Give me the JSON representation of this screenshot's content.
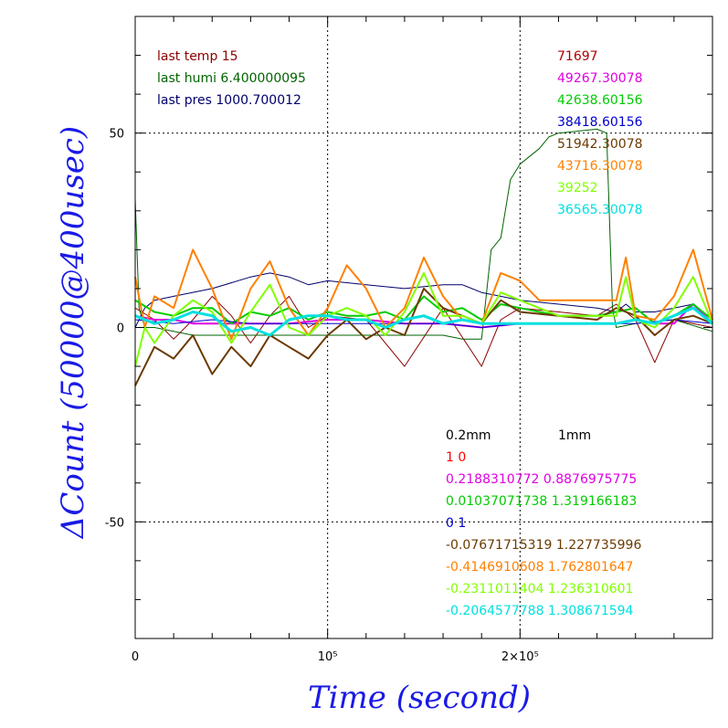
{
  "chart_data": {
    "type": "line",
    "xlabel": "Time (second)",
    "ylabel": "ΔCount (50000@400usec)",
    "xlim": [
      0,
      300000
    ],
    "ylim": [
      -80,
      80
    ],
    "xticks": [
      {
        "value": 0,
        "label": "0"
      },
      {
        "value": 100000,
        "label": "10⁵"
      },
      {
        "value": 200000,
        "label": "2×10⁵"
      }
    ],
    "yticks": [
      {
        "value": 50,
        "label": "50"
      },
      {
        "value": 0,
        "label": "0"
      },
      {
        "value": -50,
        "label": "-50"
      }
    ],
    "grid_x": [
      100000,
      200000
    ],
    "grid_y": [
      50,
      -50
    ],
    "info_lines": [
      {
        "text": "last temp 15",
        "color": "#8b0000"
      },
      {
        "text": "last humi 6.400000095",
        "color": "#006400"
      },
      {
        "text": "last pres 1000.700012",
        "color": "#00006b"
      }
    ],
    "count_labels": [
      {
        "text": "71697",
        "color": "#b00000"
      },
      {
        "text": "49267.30078",
        "color": "#e000e0"
      },
      {
        "text": "42638.60156",
        "color": "#00cc00"
      },
      {
        "text": "38418.60156",
        "color": "#0000cc"
      },
      {
        "text": "51942.30078",
        "color": "#6b3a00"
      },
      {
        "text": "43716.30078",
        "color": "#ff8000"
      },
      {
        "text": "39252",
        "color": "#80ff00"
      },
      {
        "text": "36565.30078",
        "color": "#00e0e0"
      }
    ],
    "coef_header": {
      "col1": "0.2mm",
      "col2": "1mm",
      "color": "#000000"
    },
    "coef_lines": [
      {
        "text": "1 0",
        "color": "#ff0000"
      },
      {
        "text": "0.2188310772 0.8876975775",
        "color": "#e000e0"
      },
      {
        "text": "0.01037071738 1.319166183",
        "color": "#00cc00"
      },
      {
        "text": "0 1",
        "color": "#0000cc"
      },
      {
        "text": "-0.07671715319 1.227735996",
        "color": "#6b3a00"
      },
      {
        "text": "-0.4146910608 1.762801647",
        "color": "#ff8000"
      },
      {
        "text": "-0.2311011404 1.236310601",
        "color": "#80ff00"
      },
      {
        "text": "-0.2064577788 1.308671594",
        "color": "#00e0e0"
      }
    ],
    "series": [
      {
        "color": "#8b0000",
        "width": 1,
        "x": [
          0,
          10000,
          20000,
          30000,
          40000,
          50000,
          60000,
          70000,
          80000,
          90000,
          100000,
          120000,
          140000,
          160000,
          180000,
          190000,
          200000,
          220000,
          240000,
          250000,
          260000,
          270000,
          280000,
          300000
        ],
        "y": [
          5,
          2,
          -3,
          2,
          8,
          3,
          -4,
          3,
          8,
          0,
          3,
          2,
          -10,
          5,
          -10,
          2,
          5,
          4,
          3,
          6,
          2,
          -9,
          2,
          0
        ]
      },
      {
        "color": "#006400",
        "width": 1,
        "x": [
          0,
          2000,
          5000,
          10000,
          30000,
          60000,
          100000,
          140000,
          160000,
          170000,
          180000,
          185000,
          190000,
          195000,
          200000,
          205000,
          210000,
          215000,
          220000,
          240000,
          245000,
          248000,
          250000,
          260000,
          280000,
          300000
        ],
        "y": [
          33,
          5,
          0,
          0,
          -2,
          -2,
          -2,
          -2,
          -2,
          -3,
          -3,
          20,
          23,
          38,
          42,
          44,
          46,
          49,
          50,
          51,
          50,
          5,
          0,
          1,
          2,
          -1
        ]
      },
      {
        "color": "#00006b",
        "width": 1,
        "x": [
          0,
          5000,
          10000,
          20000,
          40000,
          60000,
          70000,
          80000,
          90000,
          100000,
          120000,
          140000,
          160000,
          170000,
          180000,
          190000,
          200000,
          220000,
          240000,
          250000,
          255000,
          260000,
          270000,
          280000,
          290000,
          300000
        ],
        "y": [
          0,
          5,
          7,
          8,
          10,
          13,
          14,
          13,
          11,
          12,
          11,
          10,
          11,
          11,
          9,
          8,
          7,
          6,
          5,
          4,
          6,
          4,
          4,
          5,
          6,
          2
        ]
      },
      {
        "color": "#e000e0",
        "width": 2,
        "x": [
          0,
          10000,
          20000,
          30000,
          40000,
          60000,
          80000,
          100000,
          120000,
          140000,
          160000,
          180000,
          200000,
          220000,
          240000,
          250000,
          260000,
          270000,
          280000,
          290000,
          300000
        ],
        "y": [
          3,
          2,
          2,
          1,
          1,
          1,
          1,
          2,
          2,
          1,
          1,
          0,
          1,
          1,
          1,
          1,
          2,
          1,
          1,
          6,
          1
        ]
      },
      {
        "color": "#00cc00",
        "width": 2,
        "x": [
          0,
          10000,
          20000,
          30000,
          40000,
          50000,
          60000,
          70000,
          80000,
          90000,
          100000,
          110000,
          120000,
          130000,
          140000,
          150000,
          160000,
          170000,
          180000,
          190000,
          200000,
          220000,
          240000,
          250000,
          260000,
          270000,
          280000,
          290000,
          300000
        ],
        "y": [
          7,
          4,
          3,
          5,
          5,
          1,
          4,
          3,
          5,
          2,
          4,
          3,
          3,
          4,
          2,
          8,
          4,
          5,
          2,
          6,
          5,
          3,
          3,
          4,
          5,
          1,
          3,
          6,
          2
        ]
      },
      {
        "color": "#0000cc",
        "width": 1,
        "x": [
          0,
          20000,
          40000,
          60000,
          80000,
          100000,
          120000,
          140000,
          160000,
          180000,
          200000,
          220000,
          240000,
          260000,
          280000,
          300000
        ],
        "y": [
          2,
          1,
          2,
          1,
          1,
          1,
          1,
          1,
          1,
          0,
          1,
          1,
          1,
          1,
          2,
          1
        ]
      },
      {
        "color": "#6b3a00",
        "width": 2,
        "x": [
          0,
          5000,
          10000,
          20000,
          30000,
          40000,
          50000,
          60000,
          70000,
          80000,
          90000,
          100000,
          110000,
          120000,
          130000,
          140000,
          150000,
          160000,
          170000,
          180000,
          190000,
          200000,
          220000,
          240000,
          250000,
          260000,
          270000,
          280000,
          290000,
          300000
        ],
        "y": [
          -15,
          -10,
          -5,
          -8,
          -2,
          -12,
          -5,
          -10,
          -2,
          -5,
          -8,
          -2,
          2,
          -3,
          0,
          -2,
          10,
          5,
          3,
          1,
          7,
          4,
          3,
          2,
          5,
          3,
          -2,
          2,
          3,
          1
        ]
      },
      {
        "color": "#ff8000",
        "width": 2,
        "x": [
          0,
          5000,
          10000,
          20000,
          30000,
          40000,
          50000,
          60000,
          70000,
          80000,
          90000,
          100000,
          110000,
          120000,
          130000,
          140000,
          150000,
          160000,
          170000,
          180000,
          190000,
          200000,
          210000,
          220000,
          240000,
          250000,
          255000,
          260000,
          270000,
          280000,
          290000,
          300000
        ],
        "y": [
          13,
          0,
          8,
          5,
          20,
          10,
          -3,
          10,
          17,
          5,
          -2,
          5,
          16,
          10,
          0,
          5,
          18,
          8,
          2,
          1,
          14,
          12,
          7,
          7,
          7,
          7,
          18,
          3,
          2,
          8,
          20,
          2
        ]
      },
      {
        "color": "#80ff00",
        "width": 2,
        "x": [
          0,
          5000,
          10000,
          20000,
          30000,
          40000,
          50000,
          60000,
          70000,
          80000,
          90000,
          100000,
          110000,
          120000,
          130000,
          140000,
          150000,
          160000,
          170000,
          180000,
          190000,
          200000,
          220000,
          240000,
          250000,
          255000,
          260000,
          270000,
          280000,
          290000,
          300000
        ],
        "y": [
          -10,
          0,
          -4,
          3,
          7,
          4,
          -4,
          4,
          11,
          0,
          -2,
          3,
          5,
          3,
          -2,
          4,
          14,
          3,
          3,
          1,
          9,
          7,
          3,
          3,
          3,
          13,
          2,
          0,
          5,
          13,
          1
        ]
      },
      {
        "color": "#00e0e0",
        "width": 3,
        "x": [
          0,
          10000,
          20000,
          30000,
          40000,
          50000,
          60000,
          70000,
          80000,
          90000,
          100000,
          110000,
          120000,
          130000,
          140000,
          150000,
          160000,
          170000,
          180000,
          190000,
          200000,
          220000,
          240000,
          250000,
          260000,
          270000,
          280000,
          290000,
          300000
        ],
        "y": [
          3,
          1,
          2,
          4,
          3,
          -1,
          0,
          -2,
          2,
          3,
          3,
          2,
          2,
          0,
          2,
          3,
          1,
          2,
          1,
          1,
          1,
          1,
          1,
          1,
          2,
          1,
          3,
          5,
          1
        ]
      }
    ]
  }
}
